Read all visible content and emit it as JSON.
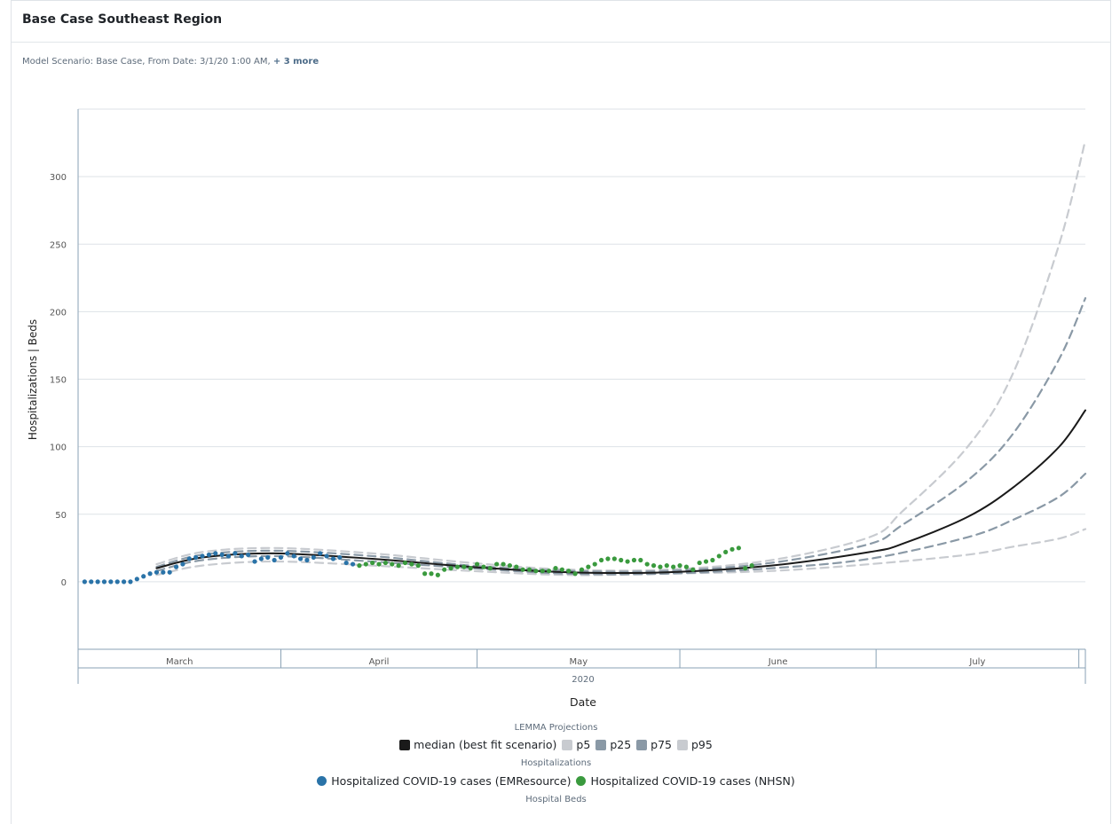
{
  "panel": {
    "title": "Base Case Southeast Region",
    "subtitle": "Model Scenario: Base Case, From Date: 3/1/20 1:00 AM,",
    "subtitle_more": "+ 3 more"
  },
  "colors": {
    "median": "#1a1a1a",
    "p5": "#c8cbd0",
    "p25": "#8a99a6",
    "p75": "#8a99a6",
    "p95": "#c8cbd0",
    "emresource": "#2a73a8",
    "nhsn": "#3a9a3e",
    "grid": "#dde2e7",
    "axis": "#8aa2b5"
  },
  "legend": {
    "projections_title": "LEMMA Projections",
    "projections": [
      {
        "label": "median (best fit scenario)",
        "color": "#1a1a1a",
        "icon": "square-swatch"
      },
      {
        "label": "p5",
        "color": "#c8cbd0",
        "icon": "square-swatch"
      },
      {
        "label": "p25",
        "color": "#8a99a6",
        "icon": "square-swatch"
      },
      {
        "label": "p75",
        "color": "#8a99a6",
        "icon": "square-swatch"
      },
      {
        "label": "p95",
        "color": "#c8cbd0",
        "icon": "square-swatch"
      }
    ],
    "hospitalizations_title": "Hospitalizations",
    "hospitalizations": [
      {
        "label": "Hospitalized COVID-19 cases (EMResource)",
        "color": "#2a73a8",
        "icon": "circle-swatch"
      },
      {
        "label": "Hospitalized COVID-19 cases (NHSN)",
        "color": "#3a9a3e",
        "icon": "circle-swatch"
      }
    ],
    "beds_title": "Hospital Beds"
  },
  "chart_data": {
    "type": "line",
    "title": "",
    "xlabel": "Date",
    "ylabel": "Hospitalizations | Beds",
    "x_year_label": "2020",
    "x_month_labels": [
      "March",
      "April",
      "May",
      "June",
      "July"
    ],
    "xlim": [
      "2020-03-01",
      "2020-07-31"
    ],
    "ylim": [
      -50,
      350
    ],
    "y_ticks": [
      0,
      50,
      100,
      150,
      200,
      250,
      300
    ],
    "grid": true,
    "legend_position": "bottom",
    "series": [
      {
        "name": "median (best fit scenario)",
        "style": "solid",
        "points": [
          [
            "2020-03-13",
            10
          ],
          [
            "2020-03-20",
            18
          ],
          [
            "2020-03-31",
            21
          ],
          [
            "2020-04-15",
            17
          ],
          [
            "2020-04-30",
            11
          ],
          [
            "2020-05-15",
            7
          ],
          [
            "2020-05-30",
            7
          ],
          [
            "2020-06-15",
            12
          ],
          [
            "2020-06-30",
            22
          ],
          [
            "2020-07-05",
            28
          ],
          [
            "2020-07-15",
            48
          ],
          [
            "2020-07-22",
            70
          ],
          [
            "2020-07-29",
            100
          ],
          [
            "2020-08-02",
            127
          ]
        ]
      },
      {
        "name": "p5",
        "style": "dashed",
        "points": [
          [
            "2020-03-13",
            5
          ],
          [
            "2020-03-20",
            12
          ],
          [
            "2020-03-31",
            15
          ],
          [
            "2020-04-15",
            12
          ],
          [
            "2020-04-30",
            8
          ],
          [
            "2020-05-15",
            5
          ],
          [
            "2020-05-30",
            6
          ],
          [
            "2020-06-15",
            8
          ],
          [
            "2020-06-30",
            13
          ],
          [
            "2020-07-15",
            20
          ],
          [
            "2020-07-22",
            26
          ],
          [
            "2020-07-29",
            32
          ],
          [
            "2020-08-02",
            39
          ]
        ]
      },
      {
        "name": "p25",
        "style": "dashed",
        "points": [
          [
            "2020-03-13",
            8
          ],
          [
            "2020-03-20",
            16
          ],
          [
            "2020-03-31",
            19
          ],
          [
            "2020-04-15",
            15
          ],
          [
            "2020-04-30",
            10
          ],
          [
            "2020-05-15",
            6
          ],
          [
            "2020-05-30",
            6
          ],
          [
            "2020-06-15",
            10
          ],
          [
            "2020-06-30",
            17
          ],
          [
            "2020-07-15",
            33
          ],
          [
            "2020-07-22",
            46
          ],
          [
            "2020-07-29",
            63
          ],
          [
            "2020-08-02",
            80
          ]
        ]
      },
      {
        "name": "p75",
        "style": "dashed",
        "points": [
          [
            "2020-03-13",
            11
          ],
          [
            "2020-03-20",
            20
          ],
          [
            "2020-03-31",
            23
          ],
          [
            "2020-04-15",
            19
          ],
          [
            "2020-04-30",
            12
          ],
          [
            "2020-05-15",
            8
          ],
          [
            "2020-05-30",
            8
          ],
          [
            "2020-06-15",
            14
          ],
          [
            "2020-06-30",
            28
          ],
          [
            "2020-07-05",
            42
          ],
          [
            "2020-07-15",
            75
          ],
          [
            "2020-07-22",
            110
          ],
          [
            "2020-07-29",
            165
          ],
          [
            "2020-08-02",
            210
          ]
        ]
      },
      {
        "name": "p95",
        "style": "dashed",
        "points": [
          [
            "2020-03-13",
            13
          ],
          [
            "2020-03-20",
            22
          ],
          [
            "2020-03-31",
            25
          ],
          [
            "2020-04-15",
            21
          ],
          [
            "2020-04-30",
            14
          ],
          [
            "2020-05-15",
            9
          ],
          [
            "2020-05-30",
            9
          ],
          [
            "2020-06-15",
            16
          ],
          [
            "2020-06-30",
            33
          ],
          [
            "2020-07-05",
            52
          ],
          [
            "2020-07-15",
            100
          ],
          [
            "2020-07-22",
            155
          ],
          [
            "2020-07-29",
            250
          ],
          [
            "2020-08-02",
            327
          ]
        ]
      },
      {
        "name": "Hospitalized COVID-19 cases (EMResource)",
        "style": "points",
        "points": [
          [
            "2020-03-02",
            0
          ],
          [
            "2020-03-03",
            0
          ],
          [
            "2020-03-04",
            0
          ],
          [
            "2020-03-05",
            0
          ],
          [
            "2020-03-06",
            0
          ],
          [
            "2020-03-07",
            0
          ],
          [
            "2020-03-08",
            0
          ],
          [
            "2020-03-09",
            0
          ],
          [
            "2020-03-10",
            2
          ],
          [
            "2020-03-11",
            4
          ],
          [
            "2020-03-12",
            6
          ],
          [
            "2020-03-13",
            7
          ],
          [
            "2020-03-14",
            7
          ],
          [
            "2020-03-15",
            7
          ],
          [
            "2020-03-16",
            11
          ],
          [
            "2020-03-17",
            13
          ],
          [
            "2020-03-18",
            17
          ],
          [
            "2020-03-19",
            18
          ],
          [
            "2020-03-20",
            19
          ],
          [
            "2020-03-21",
            20
          ],
          [
            "2020-03-22",
            21
          ],
          [
            "2020-03-23",
            20
          ],
          [
            "2020-03-24",
            19
          ],
          [
            "2020-03-25",
            21
          ],
          [
            "2020-03-26",
            19
          ],
          [
            "2020-03-27",
            20
          ],
          [
            "2020-03-28",
            15
          ],
          [
            "2020-03-29",
            17
          ],
          [
            "2020-03-30",
            18
          ],
          [
            "2020-03-31",
            16
          ],
          [
            "2020-04-01",
            18
          ],
          [
            "2020-04-02",
            21
          ],
          [
            "2020-04-03",
            19
          ],
          [
            "2020-04-04",
            17
          ],
          [
            "2020-04-05",
            16
          ],
          [
            "2020-04-06",
            18
          ],
          [
            "2020-04-07",
            21
          ],
          [
            "2020-04-08",
            19
          ],
          [
            "2020-04-09",
            17
          ],
          [
            "2020-04-10",
            18
          ],
          [
            "2020-04-11",
            14
          ],
          [
            "2020-04-12",
            13
          ]
        ]
      },
      {
        "name": "Hospitalized COVID-19 cases (NHSN)",
        "style": "points",
        "points": [
          [
            "2020-04-13",
            12
          ],
          [
            "2020-04-14",
            13
          ],
          [
            "2020-04-15",
            14
          ],
          [
            "2020-04-16",
            13
          ],
          [
            "2020-04-17",
            14
          ],
          [
            "2020-04-18",
            13
          ],
          [
            "2020-04-19",
            12
          ],
          [
            "2020-04-20",
            14
          ],
          [
            "2020-04-21",
            13
          ],
          [
            "2020-04-22",
            12
          ],
          [
            "2020-04-23",
            6
          ],
          [
            "2020-04-24",
            6
          ],
          [
            "2020-04-25",
            5
          ],
          [
            "2020-04-26",
            9
          ],
          [
            "2020-04-27",
            10
          ],
          [
            "2020-04-28",
            11
          ],
          [
            "2020-04-29",
            11
          ],
          [
            "2020-04-30",
            10
          ],
          [
            "2020-05-01",
            13
          ],
          [
            "2020-05-02",
            11
          ],
          [
            "2020-05-03",
            10
          ],
          [
            "2020-05-04",
            13
          ],
          [
            "2020-05-05",
            13
          ],
          [
            "2020-05-06",
            12
          ],
          [
            "2020-05-07",
            11
          ],
          [
            "2020-05-08",
            9
          ],
          [
            "2020-05-09",
            9
          ],
          [
            "2020-05-10",
            8
          ],
          [
            "2020-05-11",
            8
          ],
          [
            "2020-05-12",
            8
          ],
          [
            "2020-05-13",
            10
          ],
          [
            "2020-05-14",
            9
          ],
          [
            "2020-05-15",
            8
          ],
          [
            "2020-05-16",
            6
          ],
          [
            "2020-05-17",
            9
          ],
          [
            "2020-05-18",
            11
          ],
          [
            "2020-05-19",
            13
          ],
          [
            "2020-05-20",
            16
          ],
          [
            "2020-05-21",
            17
          ],
          [
            "2020-05-22",
            17
          ],
          [
            "2020-05-23",
            16
          ],
          [
            "2020-05-24",
            15
          ],
          [
            "2020-05-25",
            16
          ],
          [
            "2020-05-26",
            16
          ],
          [
            "2020-05-27",
            13
          ],
          [
            "2020-05-28",
            12
          ],
          [
            "2020-05-29",
            11
          ],
          [
            "2020-05-30",
            12
          ],
          [
            "2020-05-31",
            11
          ],
          [
            "2020-06-01",
            12
          ],
          [
            "2020-06-02",
            11
          ],
          [
            "2020-06-03",
            9
          ],
          [
            "2020-06-04",
            14
          ],
          [
            "2020-06-05",
            15
          ],
          [
            "2020-06-06",
            16
          ],
          [
            "2020-06-07",
            19
          ],
          [
            "2020-06-08",
            22
          ],
          [
            "2020-06-09",
            24
          ],
          [
            "2020-06-10",
            25
          ],
          [
            "2020-06-11",
            10
          ],
          [
            "2020-06-12",
            12
          ]
        ]
      }
    ]
  }
}
